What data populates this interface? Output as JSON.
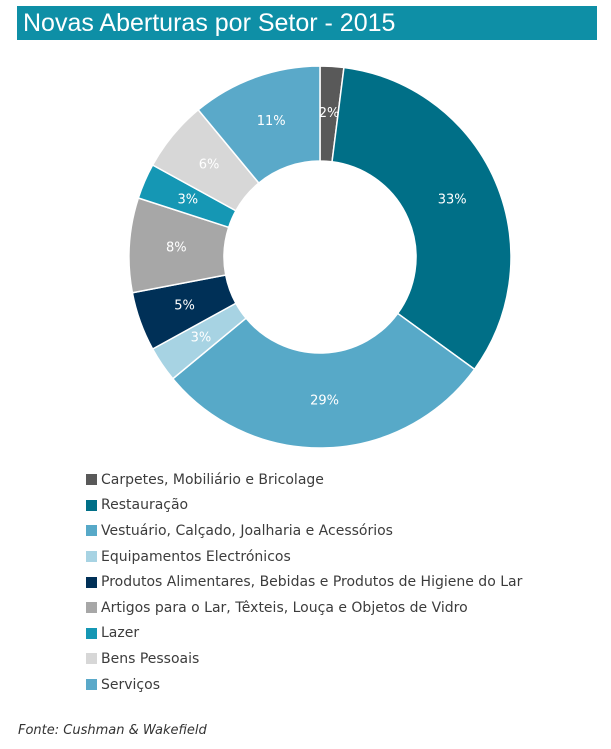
{
  "chart_data": {
    "type": "pie",
    "variant": "donut",
    "title": "Novas Aberturas por Setor - 2015",
    "unit": "%",
    "categories": [
      "Carpetes, Mobiliário e Bricolage",
      "Restauração",
      "Vestuário, Calçado, Joalharia e Acessórios",
      "Equipamentos Electrónicos",
      "Produtos Alimentares, Bebidas e Produtos de Higiene do Lar",
      "Artigos para o Lar, Têxteis, Louça e Objetos de Vidro",
      "Lazer",
      "Bens Pessoais",
      "Serviços"
    ],
    "values": [
      2,
      33,
      29,
      3,
      5,
      8,
      3,
      6,
      11
    ],
    "data_labels": [
      "2%",
      "33%",
      "29%",
      "3%",
      "5%",
      "8%",
      "3%",
      "6%",
      "11%"
    ],
    "colors": [
      "#595959",
      "#006f87",
      "#57a9c8",
      "#a7d3e3",
      "#003057",
      "#a7a7a7",
      "#1597b4",
      "#d7d7d7",
      "#5aa9c9"
    ],
    "legend_position": "bottom"
  },
  "source": "Fonte: Cushman & Wakefield"
}
